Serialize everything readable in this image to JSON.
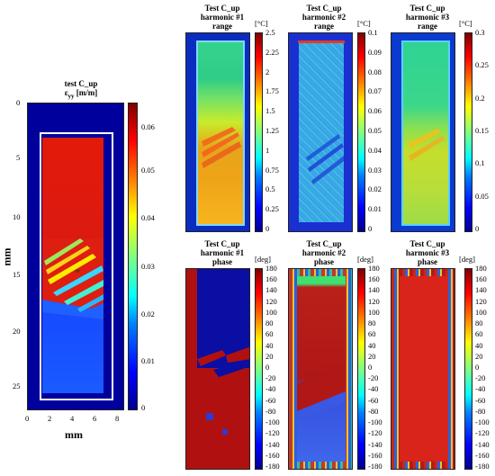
{
  "main_plot": {
    "title_line1": "test C_up",
    "title_line2_symbol": "ε",
    "title_line2_sub": "yy",
    "title_line2_unit": " [m/m]",
    "y_ticks": [
      "0",
      "5",
      "10",
      "15",
      "20",
      "25"
    ],
    "x_ticks": [
      "0",
      "2",
      "4",
      "6",
      "8"
    ],
    "y_label": "mm",
    "x_label": "mm",
    "cbar_ticks": [
      "0.06",
      "0.05",
      "0.04",
      "0.03",
      "0.02",
      "0.01",
      "0"
    ]
  },
  "top_row": [
    {
      "title": [
        "Test C_up",
        "harmonic #1",
        "range"
      ],
      "unit": "[°C]",
      "ticks": [
        "2.5",
        "2.25",
        "2",
        "1.75",
        "1.5",
        "1.25",
        "1",
        "0.75",
        "0.5",
        "0.25",
        "0"
      ]
    },
    {
      "title": [
        "Test C_up",
        "harmonic #2",
        "range"
      ],
      "unit": "[°C]",
      "ticks": [
        "0.1",
        "0.09",
        "0.08",
        "0.07",
        "0.06",
        "0.05",
        "0.04",
        "0.03",
        "0.02",
        "0.01",
        "0"
      ]
    },
    {
      "title": [
        "Test C_up",
        "harmonic #3",
        "range"
      ],
      "unit": "[°C]",
      "ticks": [
        "0.3",
        "0.25",
        "0.2",
        "0.15",
        "0.1",
        "0.05",
        "0"
      ]
    }
  ],
  "bottom_row": [
    {
      "title": [
        "Test C_up",
        "harmonic #1",
        "phase"
      ],
      "unit": "[deg]",
      "ticks": [
        "180",
        "160",
        "140",
        "120",
        "100",
        "80",
        "60",
        "40",
        "20",
        "0",
        "-20",
        "-40",
        "-60",
        "-80",
        "-100",
        "-120",
        "-140",
        "-160",
        "-180"
      ]
    },
    {
      "title": [
        "Test C_up",
        "harmonic #2",
        "phase"
      ],
      "unit": "[deg]",
      "ticks": [
        "180",
        "160",
        "140",
        "120",
        "100",
        "80",
        "60",
        "40",
        "20",
        "0",
        "-20",
        "-40",
        "-60",
        "-80",
        "-100",
        "-120",
        "-140",
        "-160",
        "-180"
      ]
    },
    {
      "title": [
        "Test C_up",
        "harmonic #3",
        "phase"
      ],
      "unit": "[deg]",
      "ticks": [
        "180",
        "160",
        "140",
        "120",
        "100",
        "80",
        "60",
        "40",
        "20",
        "0",
        "-20",
        "-40",
        "-60",
        "-80",
        "-100",
        "-120",
        "-140",
        "-160",
        "-180"
      ]
    }
  ],
  "colors": {
    "jet": "linear-gradient(to top, #00008f 0%, #0000ff 12%, #0080ff 28%, #00ffff 37%, #80ff80 50%, #ffff00 63%, #ff8000 75%, #ff0000 88%, #800000 100%)"
  }
}
